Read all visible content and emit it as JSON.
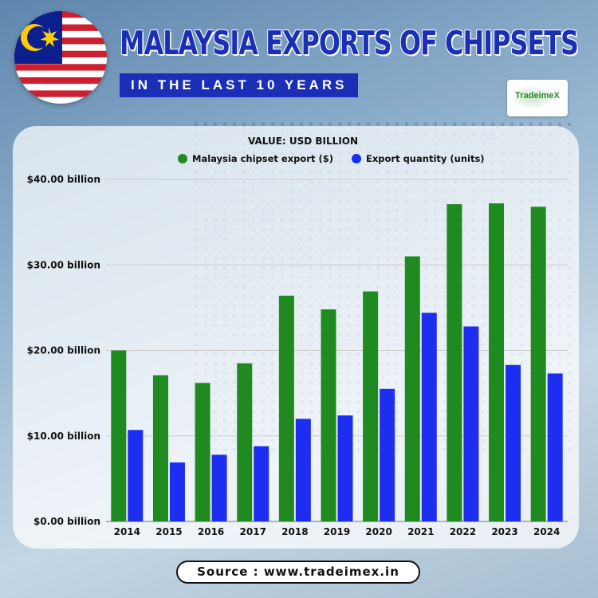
{
  "header": {
    "title": "MALAYSIA EXPORTS OF CHIPSETS",
    "subtitle": "IN THE LAST 10 YEARS",
    "logo_text": "TradeimeX"
  },
  "footer": {
    "source": "Source : www.tradeimex.in"
  },
  "colors": {
    "export_value": "#1f8a1f",
    "export_quantity": "#1e2ef0",
    "title_blue": "#1a2fb5",
    "flag_red": "#cc1f2f",
    "flag_blue": "#0b1f8f",
    "flag_yellow": "#ffcc00"
  },
  "chart_data": {
    "type": "bar",
    "subtitle": "VALUE: USD BILLION",
    "categories": [
      "2014",
      "2015",
      "2016",
      "2017",
      "2018",
      "2019",
      "2020",
      "2021",
      "2022",
      "2023",
      "2024"
    ],
    "series": [
      {
        "name": "Malaysia chipset export ($)",
        "values": [
          20.0,
          17.1,
          16.2,
          18.5,
          26.4,
          24.8,
          26.9,
          31.0,
          37.1,
          37.2,
          36.8
        ]
      },
      {
        "name": "Export quantity (units)",
        "values": [
          10.7,
          6.9,
          7.8,
          8.8,
          12.0,
          12.4,
          15.5,
          24.4,
          22.8,
          18.3,
          17.3
        ]
      }
    ],
    "ylim": [
      0,
      40
    ],
    "yticks": [
      0,
      10,
      20,
      30,
      40
    ],
    "ytick_labels": [
      "$0.00 billion",
      "$10.00 billion",
      "$20.00 billion",
      "$30.00 billion",
      "$40.00 billion"
    ],
    "legend_position": "top-center",
    "grid": true
  }
}
